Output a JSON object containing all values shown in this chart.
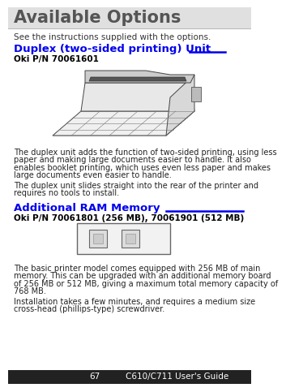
{
  "bg_color": "#ffffff",
  "title": "Available Options",
  "title_color": "#555555",
  "title_fontsize": 15,
  "subtitle": "See the instructions supplied with the options.",
  "subtitle_fontsize": 7.5,
  "subtitle_color": "#333333",
  "section1_title": "Duplex (two-sided printing) Unit",
  "section1_title_color": "#0000ee",
  "section1_title_fontsize": 9.5,
  "section1_partnumber": "Oki P/N 70061601",
  "section1_pn_fontsize": 7.5,
  "section1_pn_color": "#000000",
  "section1_text1_lines": [
    "The duplex unit adds the function of two-sided printing, using less",
    "paper and making large documents easier to handle. It also",
    "enables booklet printing, which uses even less paper and makes",
    "large documents even easier to handle."
  ],
  "section1_text2_lines": [
    "The duplex unit slides straight into the rear of the printer and",
    "requires no tools to install."
  ],
  "section2_title": "Additional RAM Memory",
  "section2_title_color": "#0000ee",
  "section2_title_fontsize": 9.5,
  "section2_partnumber": "Oki P/N 70061801 (256 MB), 70061901 (512 MB)",
  "section2_pn_fontsize": 7.5,
  "section2_pn_color": "#000000",
  "section2_text1_lines": [
    "The basic printer model comes equipped with 256 MB of main",
    "memory. This can be upgraded with an additional memory board",
    "of 256 MB or 512 MB, giving a maximum total memory capacity of",
    "768 MB."
  ],
  "section2_text2_lines": [
    "Installation takes a few minutes, and requires a medium size",
    "cross-head (phillips-type) screwdriver."
  ],
  "footer_text": "67",
  "footer_text2": "C610/C711 User's Guide",
  "footer_color": "#ffffff",
  "footer_bg": "#222222",
  "text_fontsize": 7.0,
  "text_color": "#222222",
  "line_color": "#0000ee",
  "title_line_color": "#bbbbbb"
}
